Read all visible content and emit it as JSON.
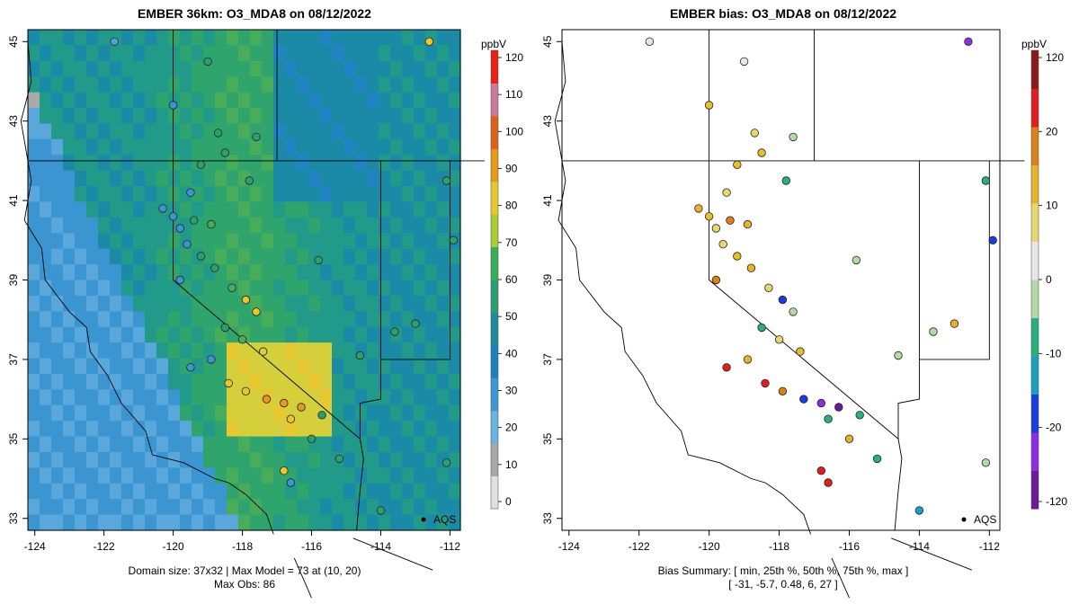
{
  "left_panel": {
    "title": "EMBER 36km: O3_MDA8 on 08/12/2022",
    "footer_line1": "Domain size: 37x32 | Max Model = 73 at (10, 20)",
    "footer_line2": "Max Obs: 86",
    "legend_unit": "ppbV",
    "legend_ticks": [
      "120",
      "110",
      "100",
      "90",
      "80",
      "70",
      "60",
      "50",
      "40",
      "30",
      "20",
      "10",
      "0"
    ],
    "aqs_label": "AQS"
  },
  "right_panel": {
    "title": "EMBER bias: O3_MDA8 on 08/12/2022",
    "footer_line1": "Bias Summary: [ min, 25th %, 50th %, 75th %, max ]",
    "footer_line2": "[ -31,   -5.7,   0.48,   6,   27 ]",
    "legend_unit": "ppbV",
    "legend_ticks": [
      "120",
      "20",
      "10",
      "0",
      "-10",
      "-20",
      "-120"
    ],
    "aqs_label": "AQS"
  },
  "axes": {
    "x_ticks": [
      "-124",
      "-122",
      "-120",
      "-118",
      "-116",
      "-114",
      "-112"
    ],
    "y_ticks": [
      "45",
      "43",
      "41",
      "39",
      "37",
      "35",
      "33"
    ]
  },
  "colors": {
    "ozone_scale": [
      "#e0e0e0",
      "#a8a8a8",
      "#6ab2e0",
      "#3d97d3",
      "#1f7fbf",
      "#1f8a9e",
      "#2a9d72",
      "#3aad5a",
      "#a8cc3a",
      "#e6c72e",
      "#e59a1c",
      "#d9631a",
      "#c97a9a",
      "#e8201a"
    ],
    "bias_scale": [
      "#6a1b9a",
      "#8e2de2",
      "#1a3de0",
      "#1aa0c0",
      "#2ab07a",
      "#b6d8a8",
      "#e6e6e6",
      "#e6d770",
      "#e6b428",
      "#d9821a",
      "#e02020",
      "#8b1a1a"
    ]
  }
}
